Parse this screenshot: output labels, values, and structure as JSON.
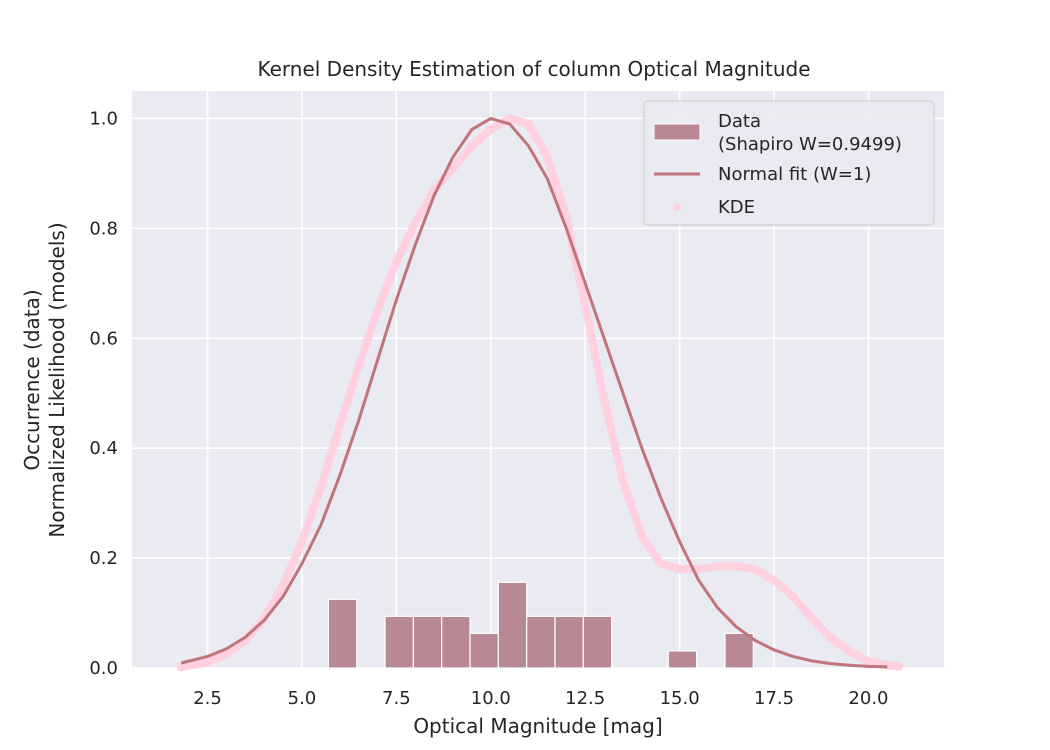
{
  "chart_data": {
    "type": "bar",
    "title": "Kernel Density Estimation of column Optical Magnitude",
    "xlabel": "Optical Magnitude [mag]",
    "ylabel_lines": [
      "Occurrence (data)",
      "Normalized Likelihood (models)"
    ],
    "xlim": [
      0.5,
      22.0
    ],
    "ylim": [
      0.0,
      1.05
    ],
    "x_ticks": [
      2.5,
      5.0,
      7.5,
      10.0,
      12.5,
      15.0,
      17.5,
      20.0
    ],
    "x_tick_labels": [
      "2.5",
      "5.0",
      "7.5",
      "10.0",
      "12.5",
      "15.0",
      "17.5",
      "20.0"
    ],
    "y_ticks": [
      0.0,
      0.2,
      0.4,
      0.6,
      0.8,
      1.0
    ],
    "y_tick_labels": [
      "0.0",
      "0.2",
      "0.4",
      "0.6",
      "0.8",
      "1.0"
    ],
    "grid": true,
    "legend_position": "top-right",
    "histogram": {
      "name": "Data\n(Shapiro W=0.9499)",
      "label_lines": [
        "Data",
        "(Shapiro W=0.9499)"
      ],
      "color": "#b88894",
      "bins": [
        {
          "x0": 5.7,
          "x1": 6.45,
          "value": 0.125
        },
        {
          "x0": 7.2,
          "x1": 7.95,
          "value": 0.094
        },
        {
          "x0": 7.95,
          "x1": 8.7,
          "value": 0.094
        },
        {
          "x0": 8.7,
          "x1": 9.45,
          "value": 0.094
        },
        {
          "x0": 9.45,
          "x1": 10.2,
          "value": 0.063
        },
        {
          "x0": 10.2,
          "x1": 10.95,
          "value": 0.156
        },
        {
          "x0": 10.95,
          "x1": 11.7,
          "value": 0.094
        },
        {
          "x0": 11.7,
          "x1": 12.45,
          "value": 0.094
        },
        {
          "x0": 12.45,
          "x1": 13.2,
          "value": 0.094
        },
        {
          "x0": 14.7,
          "x1": 15.45,
          "value": 0.031
        },
        {
          "x0": 16.2,
          "x1": 16.95,
          "value": 0.063
        }
      ]
    },
    "normal_fit": {
      "name": "Normal fit (W=1)",
      "color": "#c0747c",
      "x": [
        1.8,
        2.5,
        3.0,
        3.5,
        4.0,
        4.5,
        5.0,
        5.5,
        6.0,
        6.5,
        7.0,
        7.5,
        8.0,
        8.5,
        9.0,
        9.5,
        10.0,
        10.5,
        11.0,
        11.5,
        12.0,
        12.5,
        13.0,
        13.5,
        14.0,
        14.5,
        15.0,
        15.5,
        16.0,
        16.5,
        17.0,
        17.5,
        18.0,
        18.5,
        19.0,
        19.5,
        20.0,
        20.5
      ],
      "y": [
        0.009,
        0.021,
        0.035,
        0.056,
        0.087,
        0.13,
        0.19,
        0.26,
        0.35,
        0.45,
        0.56,
        0.67,
        0.77,
        0.86,
        0.93,
        0.98,
        1.0,
        0.99,
        0.95,
        0.89,
        0.8,
        0.7,
        0.6,
        0.5,
        0.4,
        0.31,
        0.23,
        0.16,
        0.11,
        0.075,
        0.05,
        0.033,
        0.021,
        0.013,
        0.008,
        0.005,
        0.003,
        0.002
      ]
    },
    "kde": {
      "name": "KDE",
      "color": "#ffd0e0",
      "x": [
        1.8,
        2.5,
        3.0,
        3.5,
        4.0,
        4.5,
        5.0,
        5.5,
        6.0,
        6.5,
        7.0,
        7.5,
        8.0,
        8.5,
        9.0,
        9.5,
        10.0,
        10.5,
        11.0,
        11.5,
        12.0,
        12.5,
        13.0,
        13.5,
        14.0,
        14.5,
        15.0,
        15.5,
        16.0,
        16.5,
        17.0,
        17.5,
        18.0,
        18.5,
        19.0,
        19.5,
        20.0,
        20.5,
        20.8
      ],
      "y": [
        0.002,
        0.01,
        0.025,
        0.05,
        0.09,
        0.15,
        0.23,
        0.33,
        0.44,
        0.55,
        0.65,
        0.74,
        0.81,
        0.87,
        0.91,
        0.95,
        0.98,
        1.0,
        0.99,
        0.93,
        0.82,
        0.66,
        0.49,
        0.34,
        0.24,
        0.19,
        0.18,
        0.18,
        0.185,
        0.185,
        0.18,
        0.16,
        0.13,
        0.09,
        0.055,
        0.03,
        0.012,
        0.005,
        0.003
      ]
    }
  }
}
